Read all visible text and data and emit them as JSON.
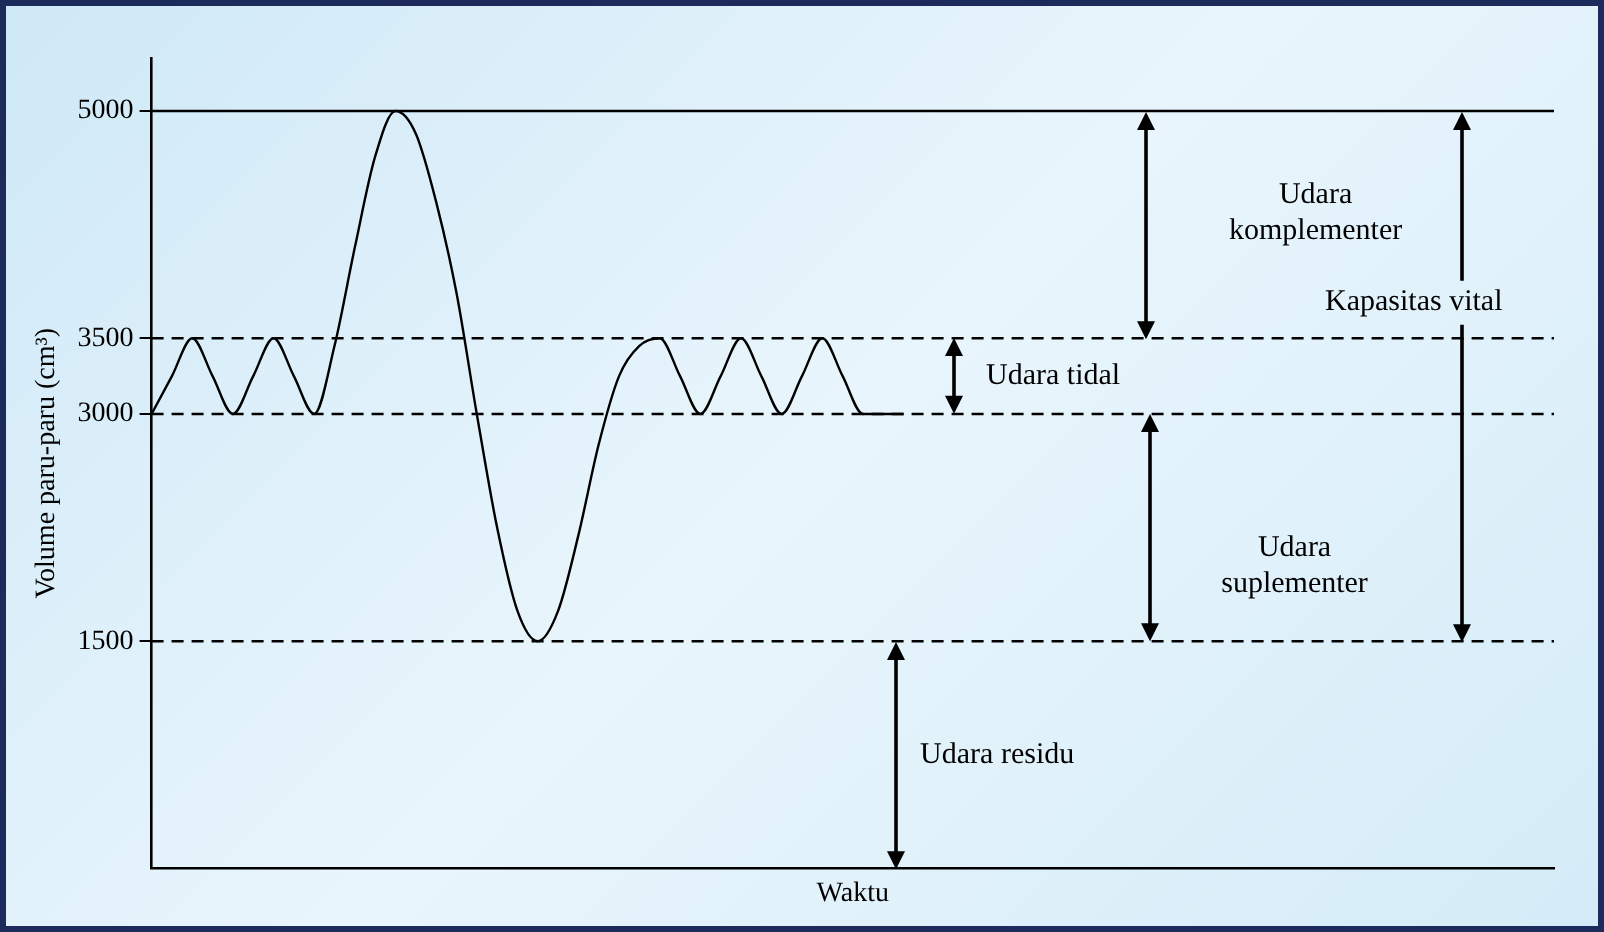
{
  "chart_data": {
    "type": "line",
    "xlabel": "Waktu",
    "ylabel": "Volume paru-paru (cm³)",
    "categories": [
      null,
      null,
      null,
      null,
      null,
      null,
      null,
      null,
      null,
      null,
      null,
      null,
      null,
      null,
      null,
      null,
      null,
      null,
      null,
      null,
      null,
      null,
      null,
      null,
      null,
      null,
      null,
      null,
      null,
      null,
      null,
      null,
      null,
      null,
      null,
      null,
      null,
      null,
      null,
      null,
      null,
      null,
      null,
      null,
      null,
      null,
      null,
      null,
      null,
      null,
      null,
      null,
      null,
      null,
      null,
      null,
      null,
      null,
      null,
      null,
      null,
      null,
      null,
      null,
      null,
      null,
      null,
      null,
      null,
      null
    ],
    "series": [
      {
        "color": "#000000",
        "values": [
          3000,
          3250,
          3500,
          3250,
          3000,
          3250,
          3500,
          3250,
          3000,
          3450,
          4100,
          4700,
          5000,
          4850,
          4400,
          3800,
          3000,
          2250,
          1700,
          1500,
          1700,
          2200,
          2800,
          3250,
          3450,
          3500,
          3250,
          3000,
          3250,
          3500,
          3250,
          3000,
          3250,
          3500,
          3250,
          3000,
          3000,
          3000,
          null,
          null,
          null,
          null,
          null,
          null,
          null,
          null,
          null,
          null,
          null,
          null,
          null,
          null,
          null,
          null,
          null,
          null,
          null,
          null,
          null,
          null,
          null,
          null,
          null,
          null,
          null,
          null,
          null,
          null,
          null,
          null
        ]
      }
    ],
    "ylim": [
      0,
      5350
    ],
    "yticks": [
      1500,
      3000,
      3500,
      5000
    ],
    "grid": false,
    "legend": false,
    "tick_labels": "y",
    "marker": "none",
    "line_style": "solid",
    "ref_lines": [
      {
        "axis": "y",
        "value": 5000,
        "line_style": "solid",
        "color": "#000000"
      },
      {
        "axis": "y",
        "value": 3500,
        "line_style": "dashed",
        "color": "#000000"
      },
      {
        "axis": "y",
        "value": 3000,
        "line_style": "dashed",
        "color": "#000000"
      },
      {
        "axis": "y",
        "value": 1500,
        "line_style": "dashed",
        "color": "#000000"
      }
    ],
    "annotations": [
      "Udara komplementer",
      "Udara tidal",
      "Udara suplementer",
      "Udara residu",
      "Kapasitas vital"
    ]
  }
}
